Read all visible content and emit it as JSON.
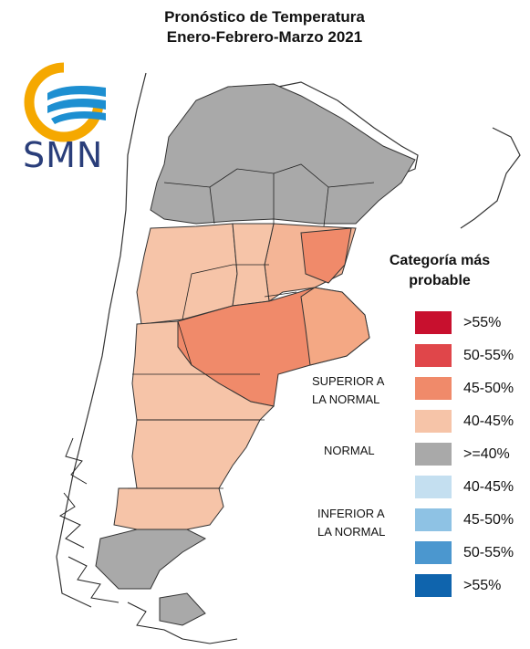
{
  "title": {
    "line1": "Pronóstico de Temperatura",
    "line2": "Enero-Febrero-Marzo 2021"
  },
  "logo": {
    "text": "SMN",
    "icon": "smn-sun-waves-logo"
  },
  "legend": {
    "title_line1": "Categoría más",
    "title_line2": "probable",
    "items": [
      {
        "range": ">55%",
        "color": "#c8102e",
        "group": "superior"
      },
      {
        "range": "50-55%",
        "color": "#e0464a",
        "group": "superior"
      },
      {
        "range": "45-50%",
        "color": "#f08a6a",
        "group": "superior"
      },
      {
        "range": "40-45%",
        "color": "#f6c4a8",
        "group": "superior"
      },
      {
        "range": ">=40%",
        "color": "#a9a9a9",
        "group": "normal"
      },
      {
        "range": "40-45%",
        "color": "#c4dff0",
        "group": "inferior"
      },
      {
        "range": "45-50%",
        "color": "#8ec2e4",
        "group": "inferior"
      },
      {
        "range": "50-55%",
        "color": "#4b97cf",
        "group": "inferior"
      },
      {
        "range": ">55%",
        "color": "#0f64ad",
        "group": "inferior"
      }
    ],
    "groups": {
      "superior": {
        "line1": "SUPERIOR A",
        "line2": "LA NORMAL"
      },
      "normal": {
        "line1": "NORMAL"
      },
      "inferior": {
        "line1": "INFERIOR A",
        "line2": "LA NORMAL"
      }
    }
  },
  "map": {
    "regions": [
      {
        "name": "north",
        "category": "normal"
      },
      {
        "name": "cuyo-center",
        "category": "superior 40-45%"
      },
      {
        "name": "litoral-east",
        "category": "superior 45-50%"
      },
      {
        "name": "pampa-buenos-aires",
        "category": "superior 45-50%"
      },
      {
        "name": "patagonia-north-center",
        "category": "superior 40-45%"
      },
      {
        "name": "santa-cruz-tierra-del-fuego-south",
        "category": "normal"
      }
    ]
  }
}
